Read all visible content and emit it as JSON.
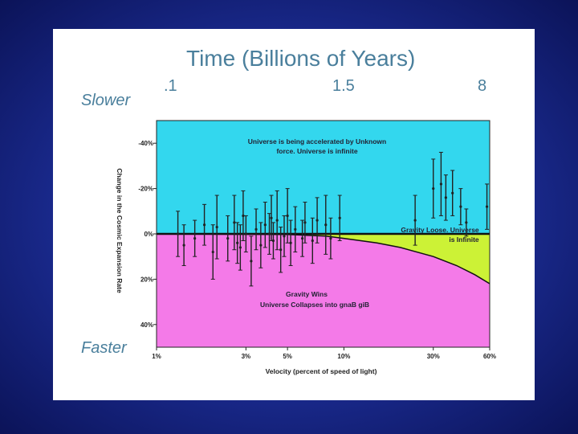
{
  "top_axis": {
    "title": "Time (Billions of Years)",
    "ticks": [
      {
        "label": ".1",
        "velocity": 1
      },
      {
        "label": "1.5",
        "velocity": 10
      },
      {
        "label": "8",
        "velocity": 60
      }
    ]
  },
  "labels": {
    "slower": "Slower",
    "faster": "Faster"
  },
  "colors": {
    "background": "#1a2a8e",
    "accelerated_region": "#33d7ee",
    "loose_region": "#ccf236",
    "wins_region": "#f47ae8",
    "title_text": "#4a7f9c"
  },
  "chart_data": {
    "type": "scatter",
    "xlabel": "Velocity (percent of speed of light)",
    "ylabel": "Change in the Cosmic Expansion Rate",
    "xscale": "log",
    "xlim": [
      1,
      60
    ],
    "ylim": [
      50,
      -50
    ],
    "x_tick_labels": [
      "1%",
      "3%",
      "5%",
      "10%",
      "30%",
      "60%"
    ],
    "x_ticks": [
      1,
      3,
      5,
      10,
      30,
      60
    ],
    "y_tick_labels": [
      "-40%",
      "-20%",
      "0%",
      "20%",
      "40%"
    ],
    "y_ticks": [
      -40,
      -20,
      0,
      20,
      40
    ],
    "regions": [
      {
        "name": "accelerated",
        "text": [
          "Universe is being accelerated by Unknown",
          "force. Universe is infinite"
        ]
      },
      {
        "name": "loose",
        "text": [
          "Gravity Loose. Universe",
          "is Infinite"
        ]
      },
      {
        "name": "wins",
        "text": [
          "Gravity Wins",
          "Universe Collapses into gnaB giB"
        ]
      }
    ],
    "boundary_curve": {
      "x": [
        1,
        5,
        8,
        10,
        15,
        20,
        30,
        40,
        50,
        60
      ],
      "y": [
        0,
        0.3,
        1,
        2,
        4,
        6,
        10,
        14,
        18,
        22
      ]
    },
    "points": [
      {
        "x": 1.3,
        "y": 0,
        "err": 10
      },
      {
        "x": 1.4,
        "y": 5,
        "err": 9
      },
      {
        "x": 1.6,
        "y": 2,
        "err": 8
      },
      {
        "x": 1.8,
        "y": -4,
        "err": 9
      },
      {
        "x": 2.0,
        "y": 8,
        "err": 12
      },
      {
        "x": 2.1,
        "y": -3,
        "err": 14
      },
      {
        "x": 2.4,
        "y": 2,
        "err": 10
      },
      {
        "x": 2.6,
        "y": -5,
        "err": 12
      },
      {
        "x": 2.7,
        "y": 4,
        "err": 9
      },
      {
        "x": 2.8,
        "y": 6,
        "err": 10
      },
      {
        "x": 2.9,
        "y": -8,
        "err": 11
      },
      {
        "x": 3.0,
        "y": 0,
        "err": 8
      },
      {
        "x": 3.2,
        "y": 12,
        "err": 11
      },
      {
        "x": 3.4,
        "y": -2,
        "err": 9
      },
      {
        "x": 3.6,
        "y": 5,
        "err": 10
      },
      {
        "x": 3.8,
        "y": -4,
        "err": 10
      },
      {
        "x": 4.0,
        "y": 0,
        "err": 9
      },
      {
        "x": 4.1,
        "y": -7,
        "err": 10
      },
      {
        "x": 4.2,
        "y": 3,
        "err": 8
      },
      {
        "x": 4.4,
        "y": -6,
        "err": 13
      },
      {
        "x": 4.6,
        "y": 7,
        "err": 10
      },
      {
        "x": 4.8,
        "y": 1,
        "err": 9
      },
      {
        "x": 5.0,
        "y": -8,
        "err": 12
      },
      {
        "x": 5.2,
        "y": 4,
        "err": 10
      },
      {
        "x": 5.5,
        "y": -2,
        "err": 10
      },
      {
        "x": 6.0,
        "y": 2,
        "err": 8
      },
      {
        "x": 6.2,
        "y": -5,
        "err": 9
      },
      {
        "x": 6.8,
        "y": 3,
        "err": 10
      },
      {
        "x": 7.2,
        "y": -6,
        "err": 10
      },
      {
        "x": 8.0,
        "y": -4,
        "err": 13
      },
      {
        "x": 8.5,
        "y": 2,
        "err": 9
      },
      {
        "x": 9.5,
        "y": -7,
        "err": 10
      },
      {
        "x": 24,
        "y": -6,
        "err": 11
      },
      {
        "x": 30,
        "y": -20,
        "err": 13
      },
      {
        "x": 33,
        "y": -22,
        "err": 14
      },
      {
        "x": 35,
        "y": -16,
        "err": 10
      },
      {
        "x": 38,
        "y": -18,
        "err": 10
      },
      {
        "x": 42,
        "y": -12,
        "err": 8
      },
      {
        "x": 45,
        "y": -5,
        "err": 6
      },
      {
        "x": 58,
        "y": -12,
        "err": 10
      }
    ]
  }
}
